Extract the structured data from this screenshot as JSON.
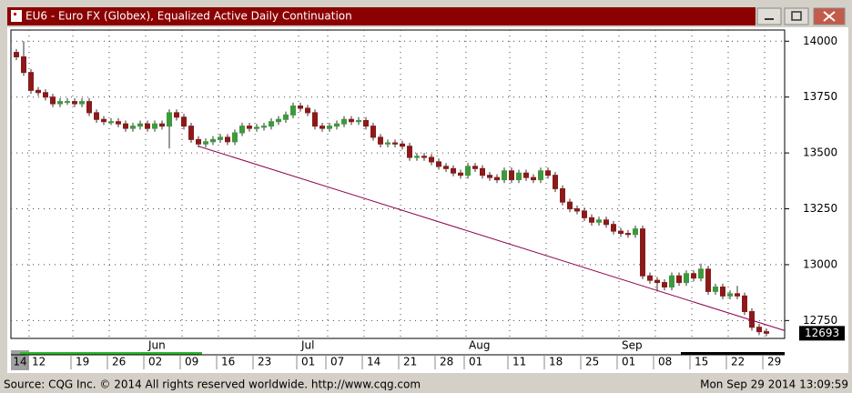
{
  "chart_data": {
    "type": "candlestick",
    "title": "EU6 - Euro FX (Globex), Equalized Active Daily Continuation",
    "categories": [
      null,
      null,
      "12",
      null,
      null,
      null,
      null,
      null,
      "19",
      null,
      null,
      null,
      null,
      "26",
      null,
      null,
      null,
      null,
      "02",
      null,
      null,
      null,
      null,
      "09",
      null,
      null,
      null,
      null,
      "16",
      null,
      null,
      null,
      null,
      "23",
      null,
      null,
      null,
      null,
      null,
      "01",
      null,
      null,
      null,
      "07",
      null,
      null,
      null,
      null,
      "14",
      null,
      null,
      null,
      null,
      "21",
      null,
      null,
      null,
      null,
      "28",
      null,
      null,
      null,
      "01",
      null,
      null,
      null,
      null,
      null,
      "11",
      null,
      null,
      null,
      null,
      "18",
      null,
      null,
      null,
      null,
      "25",
      null,
      null,
      null,
      null,
      "01",
      null,
      null,
      null,
      null,
      "08",
      null,
      null,
      null,
      null,
      "15",
      null,
      null,
      null,
      null,
      "22",
      null,
      null,
      null,
      null,
      "29"
    ],
    "months": [
      null,
      null,
      null,
      null,
      null,
      null,
      null,
      null,
      null,
      null,
      null,
      null,
      null,
      null,
      null,
      null,
      null,
      null,
      "Jun",
      null,
      null,
      null,
      null,
      null,
      null,
      null,
      null,
      null,
      null,
      null,
      null,
      null,
      null,
      null,
      null,
      null,
      null,
      null,
      null,
      "Jul",
      null,
      null,
      null,
      null,
      null,
      null,
      null,
      null,
      null,
      null,
      null,
      null,
      null,
      null,
      null,
      null,
      null,
      null,
      null,
      null,
      null,
      null,
      "Aug",
      null,
      null,
      null,
      null,
      null,
      null,
      null,
      null,
      null,
      null,
      null,
      null,
      null,
      null,
      null,
      null,
      null,
      null,
      null,
      null,
      "Sep",
      null,
      null,
      null,
      null,
      null,
      null,
      null,
      null,
      null,
      null,
      null,
      null,
      null,
      null,
      null,
      null,
      null,
      null,
      null,
      null
    ],
    "year_label": "14",
    "open": [
      13950,
      13930,
      13860,
      13780,
      13770,
      13750,
      13720,
      13730,
      13730,
      13720,
      13730,
      13680,
      13650,
      13640,
      13640,
      13630,
      13610,
      13620,
      13630,
      13610,
      13630,
      13620,
      13680,
      13660,
      13620,
      13560,
      13540,
      13550,
      13560,
      13570,
      13550,
      13590,
      13620,
      13610,
      13615,
      13620,
      13640,
      13650,
      13670,
      13710,
      13700,
      13680,
      13620,
      13610,
      13620,
      13630,
      13650,
      13640,
      13645,
      13620,
      13570,
      13540,
      13545,
      13540,
      13530,
      13480,
      13485,
      13480,
      13460,
      13440,
      13430,
      13410,
      13400,
      13440,
      13430,
      13400,
      13390,
      13380,
      13420,
      13380,
      13410,
      13390,
      13380,
      13420,
      13400,
      13340,
      13280,
      13250,
      13240,
      13210,
      13190,
      13200,
      13180,
      13150,
      13140,
      13135,
      13160,
      12950,
      12930,
      12920,
      12900,
      12950,
      12920,
      12960,
      12940,
      12980,
      12880,
      12900,
      12860,
      12870,
      12860,
      12790,
      12720,
      12700
    ],
    "high": [
      13965,
      14000,
      13875,
      13795,
      13785,
      13765,
      13745,
      13745,
      13745,
      13745,
      13745,
      13695,
      13665,
      13655,
      13655,
      13645,
      13635,
      13645,
      13645,
      13645,
      13645,
      13695,
      13695,
      13675,
      13635,
      13575,
      13565,
      13575,
      13585,
      13585,
      13605,
      13635,
      13635,
      13630,
      13635,
      13655,
      13665,
      13685,
      13725,
      13725,
      13715,
      13695,
      13635,
      13635,
      13645,
      13665,
      13665,
      13660,
      13660,
      13635,
      13585,
      13560,
      13560,
      13555,
      13545,
      13500,
      13500,
      13495,
      13475,
      13455,
      13445,
      13425,
      13455,
      13455,
      13445,
      13415,
      13405,
      13435,
      13435,
      13425,
      13425,
      13405,
      13435,
      13435,
      13415,
      13355,
      13295,
      13265,
      13255,
      13225,
      13215,
      13215,
      13195,
      13165,
      13155,
      13175,
      13175,
      12965,
      12945,
      12935,
      12965,
      12965,
      12975,
      12975,
      13005,
      12995,
      12915,
      12915,
      12885,
      12905,
      12875,
      12805,
      12735,
      12715
    ],
    "low": [
      13915,
      13845,
      13765,
      13755,
      13735,
      13705,
      13705,
      13715,
      13705,
      13705,
      13665,
      13635,
      13625,
      13625,
      13615,
      13595,
      13595,
      13605,
      13595,
      13595,
      13605,
      13520,
      13645,
      13605,
      13545,
      13525,
      13525,
      13535,
      13545,
      13535,
      13535,
      13575,
      13595,
      13595,
      13600,
      13605,
      13625,
      13635,
      13655,
      13685,
      13665,
      13605,
      13595,
      13595,
      13605,
      13615,
      13625,
      13625,
      13605,
      13555,
      13525,
      13525,
      13525,
      13515,
      13465,
      13465,
      13465,
      13445,
      13425,
      13415,
      13395,
      13385,
      13385,
      13415,
      13385,
      13375,
      13365,
      13365,
      13365,
      13365,
      13375,
      13365,
      13365,
      13385,
      13325,
      13265,
      13235,
      13225,
      13195,
      13175,
      13175,
      13165,
      13135,
      13125,
      13120,
      13120,
      12935,
      12915,
      12880,
      12885,
      12885,
      12905,
      12905,
      12925,
      12925,
      12865,
      12865,
      12845,
      12845,
      12845,
      12775,
      12705,
      12685,
      12680
    ],
    "close": [
      13930,
      13860,
      13780,
      13770,
      13750,
      13720,
      13730,
      13730,
      13720,
      13730,
      13680,
      13650,
      13640,
      13640,
      13630,
      13610,
      13620,
      13630,
      13610,
      13630,
      13620,
      13680,
      13660,
      13620,
      13560,
      13540,
      13550,
      13560,
      13570,
      13550,
      13590,
      13620,
      13610,
      13615,
      13620,
      13640,
      13650,
      13670,
      13710,
      13700,
      13680,
      13620,
      13610,
      13620,
      13630,
      13650,
      13640,
      13645,
      13620,
      13570,
      13540,
      13545,
      13540,
      13530,
      13480,
      13485,
      13480,
      13460,
      13440,
      13430,
      13410,
      13400,
      13440,
      13430,
      13400,
      13390,
      13380,
      13420,
      13380,
      13410,
      13390,
      13380,
      13420,
      13400,
      13340,
      13280,
      13250,
      13240,
      13210,
      13190,
      13200,
      13180,
      13150,
      13140,
      13135,
      13160,
      12950,
      12930,
      12920,
      12900,
      12950,
      12920,
      12960,
      12940,
      12980,
      12880,
      12900,
      12860,
      12870,
      12860,
      12790,
      12720,
      12700,
      12693
    ],
    "up_color": "#3c9a3c",
    "down_color": "#8b1a1a",
    "ylim": [
      12670,
      14050
    ],
    "yticks": [
      12750,
      13000,
      13250,
      13500,
      13750,
      14000
    ],
    "grid": true,
    "trendline": {
      "x": [
        25,
        105.5
      ],
      "y": [
        13530,
        12705
      ],
      "color": "#8b0050"
    }
  },
  "footer": {
    "source": "Source: CQG Inc. © 2014 All rights reserved worldwide. http://www.cqg.com",
    "timestamp": "Mon Sep 29 2014 13:09:59"
  }
}
